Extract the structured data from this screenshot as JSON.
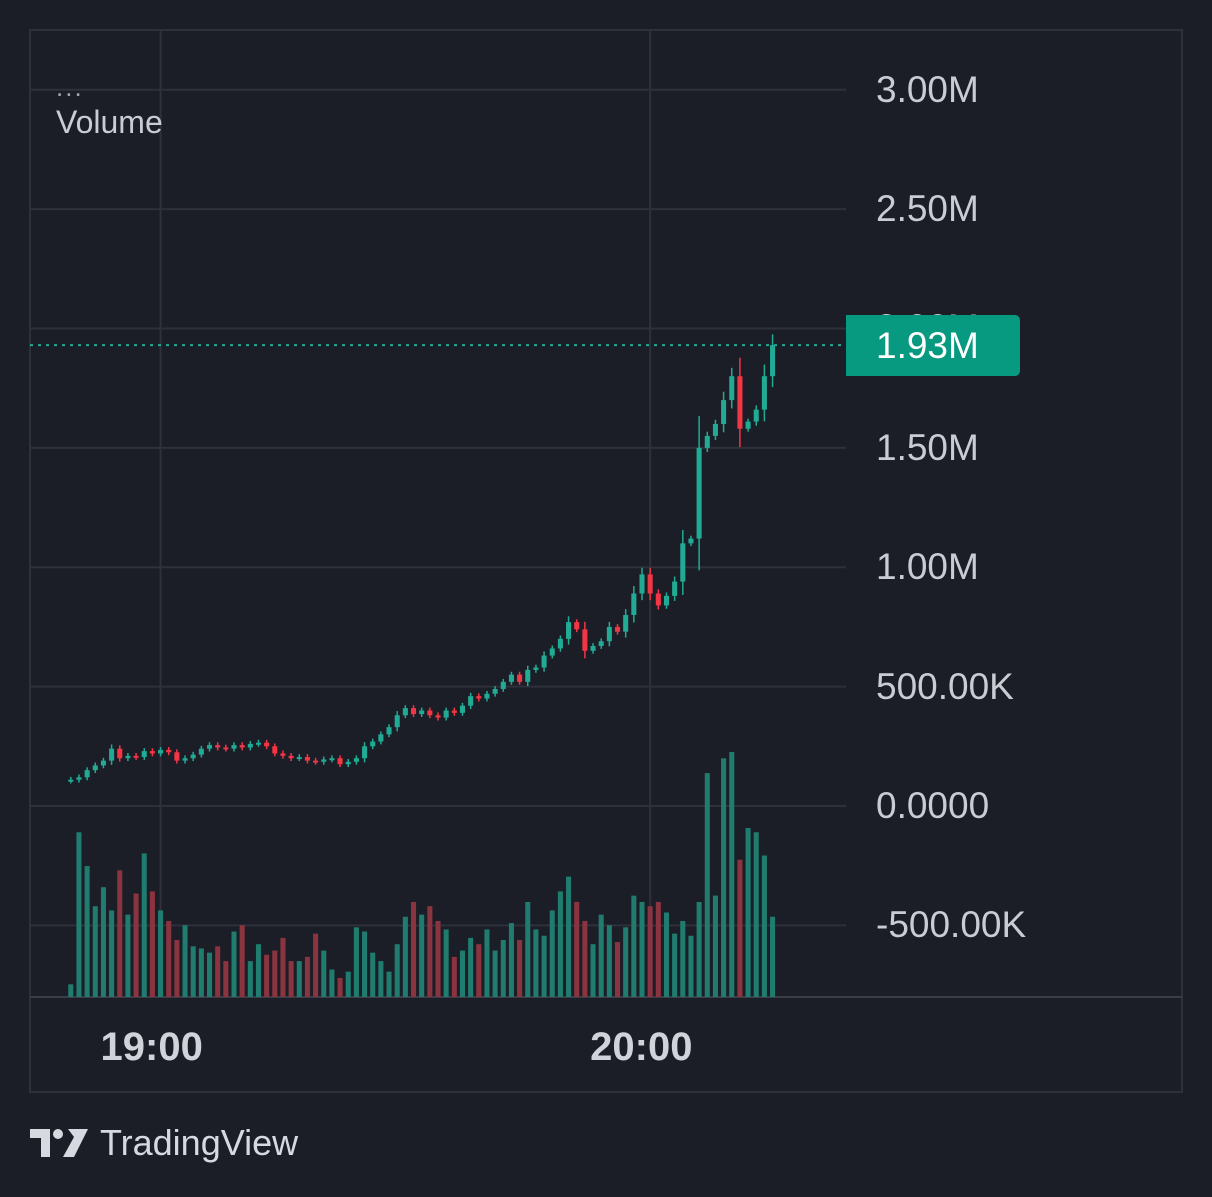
{
  "legend": {
    "menu_glyph": "...",
    "title": "Volume"
  },
  "price_badge": {
    "label": "1.93M"
  },
  "branding": {
    "text": "TradingView",
    "logo_icon": "tradingview-logo-icon"
  },
  "colors": {
    "background": "#1b1d27",
    "pane_border": "#2e313b",
    "grid": "#2e313b",
    "up": "#22ab94",
    "down": "#f23645",
    "volume_up": "#1f7c6e",
    "volume_down": "#8a3440",
    "badge": "#089981"
  },
  "chart_data": {
    "type": "candlestick",
    "title": "",
    "y_axis": {
      "ticks": [
        3000000,
        2500000,
        2000000,
        1500000,
        1000000,
        500000,
        0,
        -500000
      ],
      "tick_labels": [
        "3.00M",
        "2.50M",
        "2.00M",
        "1.50M",
        "1.00M",
        "500.00K",
        "0.0000",
        "-500.00K"
      ],
      "range": [
        -800000,
        3250000
      ]
    },
    "x_axis": {
      "ticks": [
        "19:00",
        "20:00"
      ],
      "tick_positions_minutes": [
        0,
        60
      ],
      "range_minutes": [
        -16,
        84
      ]
    },
    "last_value": 1930000,
    "last_value_label": "1.93M",
    "grid": true,
    "series": [
      {
        "name": "Price",
        "type": "candlestick",
        "bar_interval_minutes": 1,
        "first_bar_minute": -11,
        "closes": [
          110000,
          120000,
          150000,
          170000,
          190000,
          240000,
          200000,
          210000,
          205000,
          230000,
          220000,
          235000,
          225000,
          190000,
          200000,
          215000,
          240000,
          255000,
          245000,
          240000,
          255000,
          245000,
          260000,
          265000,
          250000,
          220000,
          210000,
          200000,
          205000,
          190000,
          185000,
          195000,
          200000,
          175000,
          185000,
          200000,
          250000,
          270000,
          300000,
          330000,
          380000,
          410000,
          385000,
          400000,
          380000,
          370000,
          400000,
          390000,
          420000,
          460000,
          450000,
          470000,
          490000,
          520000,
          550000,
          520000,
          570000,
          580000,
          630000,
          660000,
          700000,
          770000,
          740000,
          650000,
          670000,
          690000,
          750000,
          730000,
          800000,
          890000,
          970000,
          890000,
          840000,
          880000,
          940000,
          1100000,
          1120000,
          1500000,
          1550000,
          1600000,
          1700000,
          1800000,
          1580000,
          1610000,
          1660000,
          1800000,
          1930000
        ],
        "up_color": "#22ab94",
        "down_color": "#f23645"
      },
      {
        "name": "Volume",
        "type": "bar",
        "values": [
          6,
          78,
          62,
          43,
          52,
          41,
          60,
          39,
          49,
          68,
          50,
          41,
          36,
          27,
          34,
          24,
          23,
          21,
          24,
          17,
          31,
          34,
          17,
          25,
          20,
          22,
          28,
          17,
          17,
          19,
          30,
          22,
          13,
          9,
          12,
          33,
          31,
          21,
          17,
          12,
          25,
          38,
          45,
          39,
          43,
          36,
          32,
          19,
          22,
          28,
          25,
          32,
          22,
          27,
          35,
          27,
          45,
          32,
          29,
          41,
          50,
          57,
          45,
          36,
          25,
          39,
          34,
          26,
          33,
          48,
          45,
          43,
          45,
          40,
          30,
          36,
          29,
          45,
          106,
          48,
          113,
          116,
          65,
          80,
          78,
          67,
          38
        ],
        "value_unit": "relative volume (unlabeled)",
        "up_color": "#1f7c6e",
        "down_color": "#8a3440"
      }
    ]
  }
}
